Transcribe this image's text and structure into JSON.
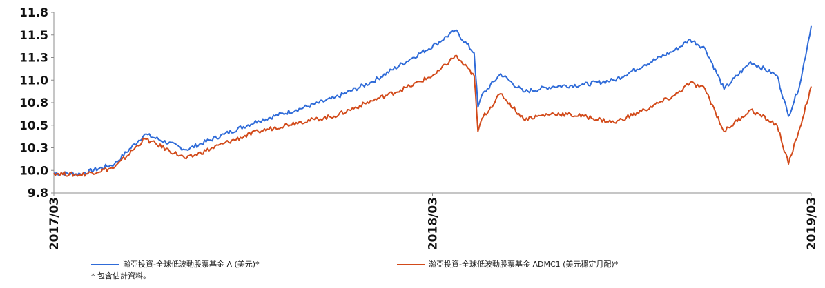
{
  "chart_data": {
    "type": "line",
    "title": "",
    "xlabel": "",
    "ylabel": "",
    "ylim": [
      9.8,
      11.8
    ],
    "yticks": [
      "11.8",
      "11.5",
      "11.3",
      "11.0",
      "10.8",
      "10.5",
      "10.3",
      "10.0",
      "9.8"
    ],
    "xticks": [
      "2017/03",
      "2018/03",
      "2019/03"
    ],
    "grid": false,
    "legend_position": "bottom",
    "colors": {
      "series_a": "#2f6bd8",
      "series_b": "#d24a1a",
      "axis": "#8c8c8c"
    },
    "series": [
      {
        "name": "瀚亞投資-全球低波動股票基金 A (美元)*",
        "x": [
          0,
          0.035,
          0.08,
          0.12,
          0.175,
          0.225,
          0.27,
          0.32,
          0.37,
          0.42,
          0.47,
          0.505,
          0.53,
          0.555,
          0.56,
          0.565,
          0.59,
          0.62,
          0.66,
          0.7,
          0.74,
          0.78,
          0.82,
          0.84,
          0.86,
          0.885,
          0.92,
          0.955,
          0.97,
          0.985,
          1.0
        ],
        "values": [
          10.02,
          10.01,
          10.12,
          10.45,
          10.28,
          10.45,
          10.6,
          10.72,
          10.85,
          11.03,
          11.28,
          11.45,
          11.6,
          11.35,
          10.75,
          10.88,
          11.12,
          10.92,
          10.98,
          11.0,
          11.05,
          11.22,
          11.38,
          11.5,
          11.4,
          10.95,
          11.25,
          11.1,
          10.65,
          11.0,
          11.65
        ]
      },
      {
        "name": "瀚亞投資-全球低波動股票基金 ADMC1 (美元穩定月配)*",
        "x": [
          0,
          0.035,
          0.08,
          0.12,
          0.175,
          0.225,
          0.27,
          0.32,
          0.37,
          0.42,
          0.47,
          0.505,
          0.53,
          0.555,
          0.56,
          0.565,
          0.59,
          0.62,
          0.66,
          0.7,
          0.74,
          0.78,
          0.82,
          0.84,
          0.86,
          0.885,
          0.92,
          0.955,
          0.97,
          0.985,
          1.0
        ],
        "values": [
          10.02,
          10.0,
          10.08,
          10.4,
          10.18,
          10.35,
          10.48,
          10.58,
          10.65,
          10.82,
          10.98,
          11.12,
          11.32,
          11.1,
          10.48,
          10.62,
          10.9,
          10.62,
          10.68,
          10.65,
          10.58,
          10.72,
          10.88,
          11.02,
          10.95,
          10.48,
          10.72,
          10.55,
          10.12,
          10.52,
          10.98
        ]
      }
    ],
    "note": "* 包含估計資料。"
  }
}
